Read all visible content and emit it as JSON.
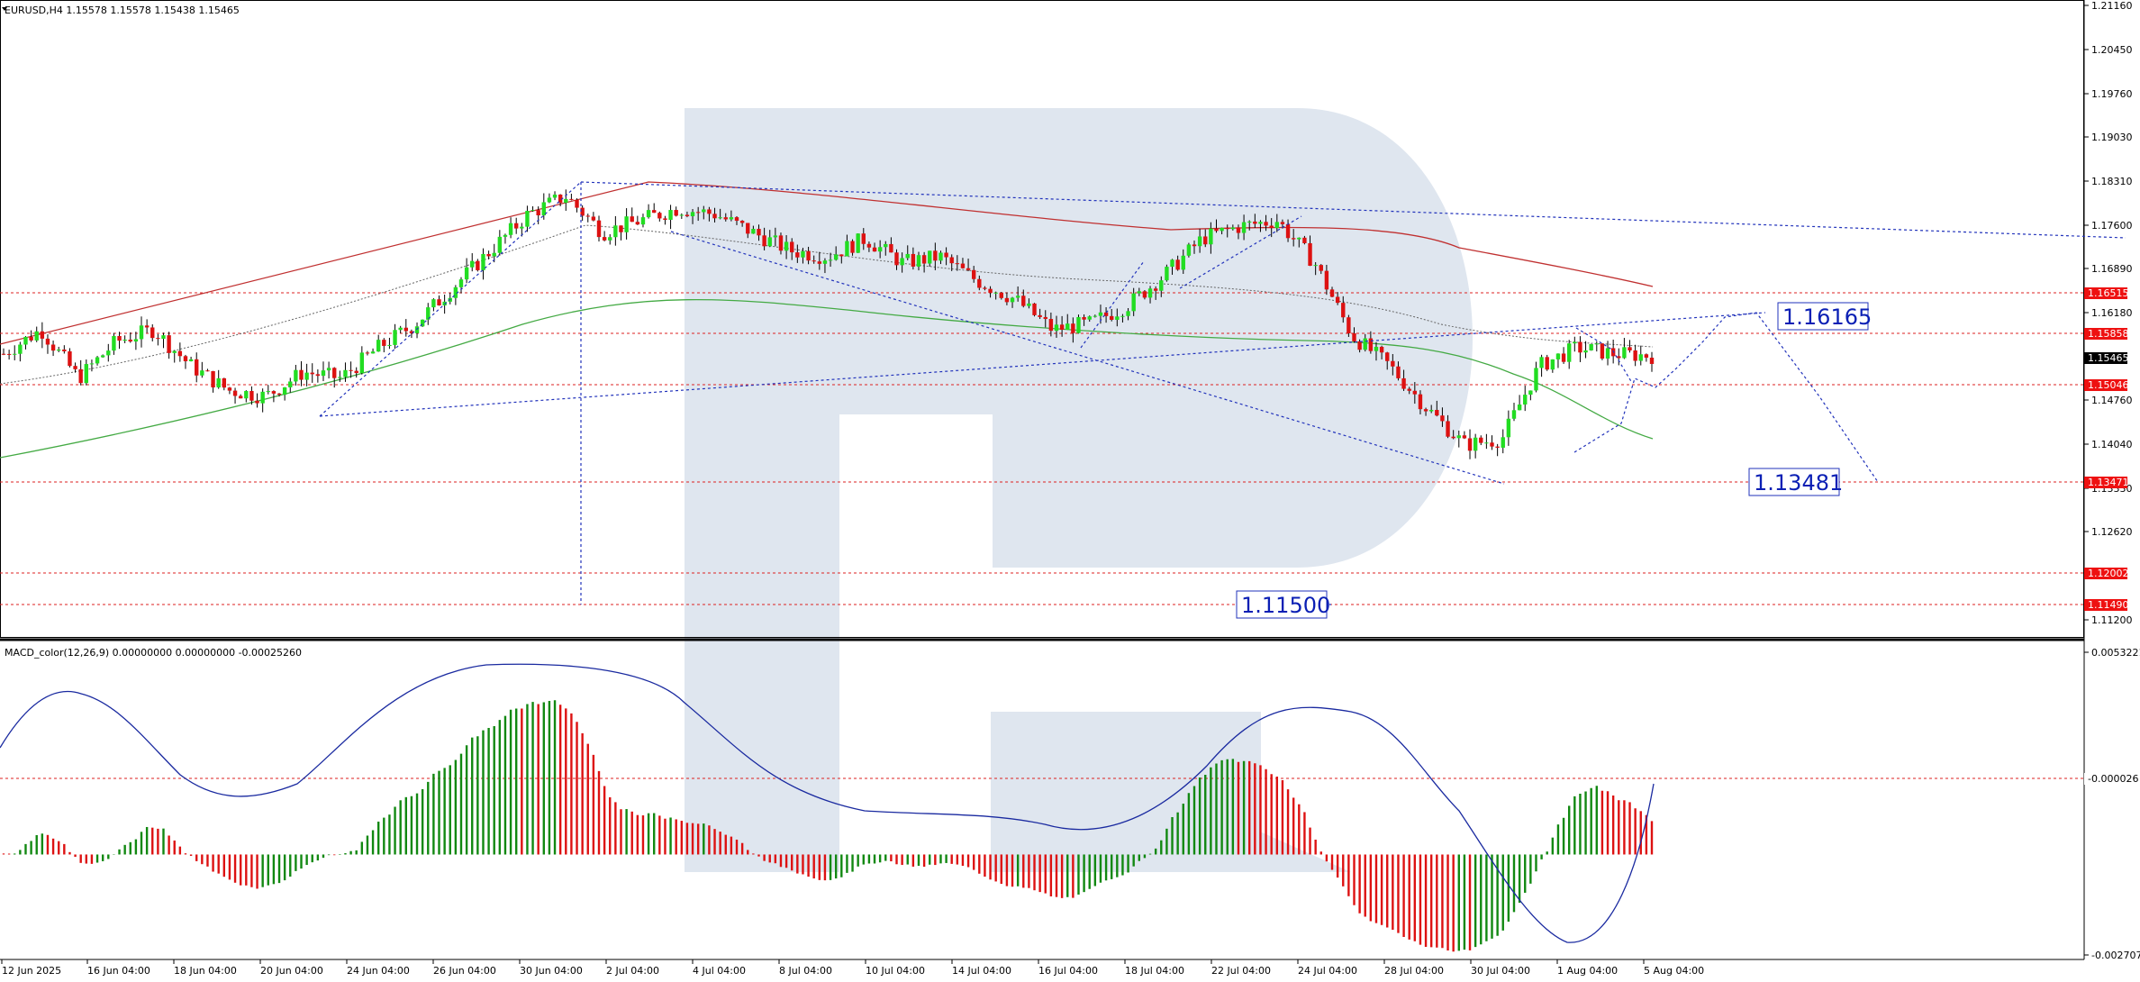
{
  "main": {
    "title": "EURUSD,H4  1.15578 1.15578 1.15438 1.15465",
    "price_labels": [
      "1.21160",
      "1.20450",
      "1.19760",
      "1.19030",
      "1.18310",
      "1.17600",
      "1.16890",
      "1.16180",
      "1.14760",
      "1.14040",
      "1.13330",
      "1.12620",
      "1.11200"
    ],
    "level_tags": [
      {
        "text": "1.16515",
        "kind": "red"
      },
      {
        "text": "1.15858",
        "kind": "red"
      },
      {
        "text": "1.15465",
        "kind": "black"
      },
      {
        "text": "1.15046",
        "kind": "red"
      },
      {
        "text": "1.13471",
        "kind": "red"
      },
      {
        "text": "1.12002",
        "kind": "red"
      },
      {
        "text": "1.11490",
        "kind": "red"
      }
    ],
    "targets": [
      "1.16165",
      "1.13481",
      "1.11500"
    ]
  },
  "macd": {
    "title": "MACD_color(12,26,9) 0.00000000 0.00000000 -0.00025260",
    "scale_labels": [
      "0.0053221",
      "-0.000026",
      "-0.0027071"
    ]
  },
  "time_axis": [
    "12 Jun 2025",
    "16 Jun 04:00",
    "18 Jun 04:00",
    "20 Jun 04:00",
    "24 Jun 04:00",
    "26 Jun 04:00",
    "30 Jun 04:00",
    "2 Jul 04:00",
    "4 Jul 04:00",
    "8 Jul 04:00",
    "10 Jul 04:00",
    "14 Jul 04:00",
    "16 Jul 04:00",
    "18 Jul 04:00",
    "22 Jul 04:00",
    "24 Jul 04:00",
    "28 Jul 04:00",
    "30 Jul 04:00",
    "1 Aug 04:00",
    "5 Aug 04:00"
  ],
  "colors": {
    "bull": "#22dd22",
    "bear": "#dd1111",
    "macd_up": "#118811",
    "macd_dn": "#dd1111",
    "ma_slow": "#c03030",
    "ma_mid": "#44aa44",
    "forecast": "#2233bb",
    "level": "#dd2222",
    "grid": "#000000"
  },
  "chart_data": {
    "type": "candlestick",
    "symbol": "EURUSD",
    "timeframe": "H4",
    "price_range": [
      1.1085,
      1.213
    ],
    "path_closes": [
      1.155,
      1.159,
      1.151,
      1.157,
      1.159,
      1.153,
      1.149,
      1.148,
      1.152,
      1.151,
      1.156,
      1.16,
      1.166,
      1.172,
      1.178,
      1.181,
      1.175,
      1.177,
      1.179,
      1.178,
      1.175,
      1.172,
      1.171,
      1.174,
      1.17,
      1.171,
      1.167,
      1.164,
      1.159,
      1.16,
      1.163,
      1.168,
      1.174,
      1.176,
      1.177,
      1.17,
      1.158,
      1.153,
      1.146,
      1.14,
      1.141,
      1.153,
      1.156,
      1.155,
      1.1547
    ],
    "annotations": [
      {
        "label": "1.16165",
        "price": 1.16165
      },
      {
        "label": "1.13481",
        "price": 1.13481
      },
      {
        "label": "1.11500",
        "price": 1.115
      }
    ],
    "macd_range": [
      -0.0027071,
      0.0053221
    ],
    "macd_zero": -2.6e-05
  }
}
